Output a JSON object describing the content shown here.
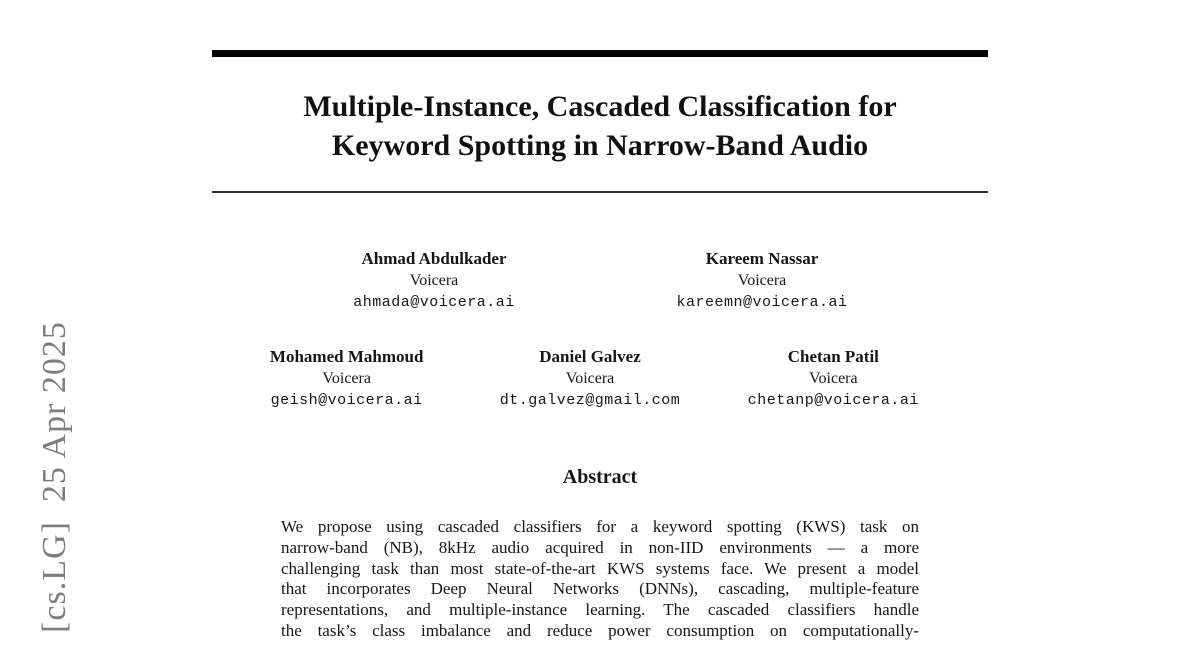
{
  "arxiv_stamp": {
    "text": "[cs.LG]  25 Apr 2025",
    "color": "#7d7d7d"
  },
  "title": {
    "line1": "Multiple-Instance, Cascaded Classification for",
    "line2": "Keyword Spotting in Narrow-Band Audio"
  },
  "authors": {
    "row1": [
      {
        "name": "Ahmad Abdulkader",
        "affiliation": "Voicera",
        "email": "ahmada@voicera.ai"
      },
      {
        "name": "Kareem Nassar",
        "affiliation": "Voicera",
        "email": "kareemn@voicera.ai"
      }
    ],
    "row2": [
      {
        "name": "Mohamed Mahmoud",
        "affiliation": "Voicera",
        "email": "geish@voicera.ai"
      },
      {
        "name": "Daniel Galvez",
        "affiliation": "Voicera",
        "email": "dt.galvez@gmail.com"
      },
      {
        "name": "Chetan Patil",
        "affiliation": "Voicera",
        "email": "chetanp@voicera.ai"
      }
    ]
  },
  "abstract": {
    "heading": "Abstract",
    "lines": [
      "We propose using cascaded classifiers for a keyword spotting (KWS) task on",
      "narrow-band (NB), 8kHz audio acquired in non-IID environments — a more",
      "challenging task than most state-of-the-art KWS systems face. We present a model",
      "that incorporates Deep Neural Networks (DNNs), cascading, multiple-feature",
      "representations, and multiple-instance learning. The cascaded classifiers handle",
      "the task’s class imbalance and reduce power consumption on computationally-"
    ]
  }
}
